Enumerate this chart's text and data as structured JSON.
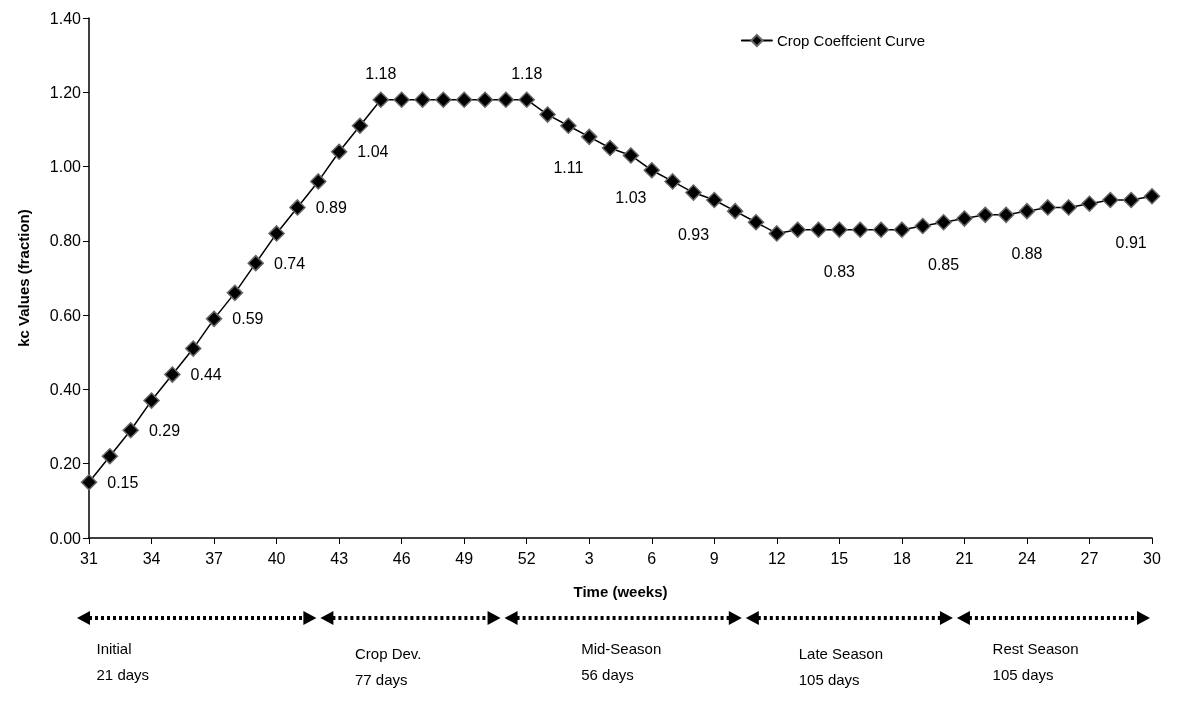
{
  "chart_data": {
    "type": "line",
    "xlabel": "Time (weeks)",
    "ylabel": "kc Values (fraction)",
    "categories": [
      "31",
      null,
      null,
      "34",
      null,
      null,
      "37",
      null,
      null,
      "40",
      null,
      null,
      "43",
      null,
      null,
      "46",
      null,
      null,
      "49",
      null,
      null,
      "52",
      null,
      null,
      "3",
      null,
      null,
      "6",
      null,
      null,
      "9",
      null,
      null,
      "12",
      null,
      null,
      "15",
      null,
      null,
      "18",
      null,
      null,
      "21",
      null,
      null,
      "24",
      null,
      null,
      "27",
      null,
      null,
      "30"
    ],
    "series": [
      {
        "name": "Crop Coeffcient Curve",
        "color": "#000000",
        "values": [
          0.15,
          0.22,
          0.29,
          0.37,
          0.44,
          0.51,
          0.59,
          0.66,
          0.74,
          0.82,
          0.89,
          0.96,
          1.04,
          1.11,
          1.18,
          1.18,
          1.18,
          1.18,
          1.18,
          1.18,
          1.18,
          1.18,
          1.14,
          1.11,
          1.08,
          1.05,
          1.03,
          0.99,
          0.96,
          0.93,
          0.91,
          0.88,
          0.85,
          0.82,
          0.83,
          0.83,
          0.83,
          0.83,
          0.83,
          0.83,
          0.84,
          0.85,
          0.86,
          0.87,
          0.87,
          0.88,
          0.89,
          0.89,
          0.9,
          0.91,
          0.91,
          0.92
        ],
        "value_labels": [
          "0.15",
          null,
          "0.29",
          null,
          "0.44",
          null,
          "0.59",
          null,
          "0.74",
          null,
          "0.89",
          null,
          "1.04",
          null,
          "1.18",
          null,
          null,
          null,
          null,
          null,
          null,
          "1.18",
          null,
          "1.11",
          null,
          null,
          "1.03",
          null,
          null,
          "0.93",
          null,
          null,
          null,
          null,
          null,
          null,
          "0.83",
          null,
          null,
          null,
          null,
          "0.85",
          null,
          null,
          null,
          "0.88",
          null,
          null,
          null,
          null,
          "0.91",
          null
        ]
      }
    ],
    "ylim": [
      0,
      1.4
    ],
    "yticks": [
      {
        "value": 0,
        "label": "0.00"
      },
      {
        "value": 0.2,
        "label": "0.20"
      },
      {
        "value": 0.4,
        "label": "0.40"
      },
      {
        "value": 0.6,
        "label": "0.60"
      },
      {
        "value": 0.8,
        "label": "0.80"
      },
      {
        "value": 1,
        "label": "1.00"
      },
      {
        "value": 1.2,
        "label": "1.20"
      },
      {
        "value": 1.4,
        "label": "1.40"
      }
    ],
    "marker": "diamond",
    "line_style": "solid",
    "legend": "top right",
    "grid": false,
    "annotations": [
      "Initial\n21 days",
      "Crop Dev.\n77 days",
      "Mid-Season\n56 days",
      "Late Season\n105 days",
      "Rest Season\n105 days"
    ]
  }
}
